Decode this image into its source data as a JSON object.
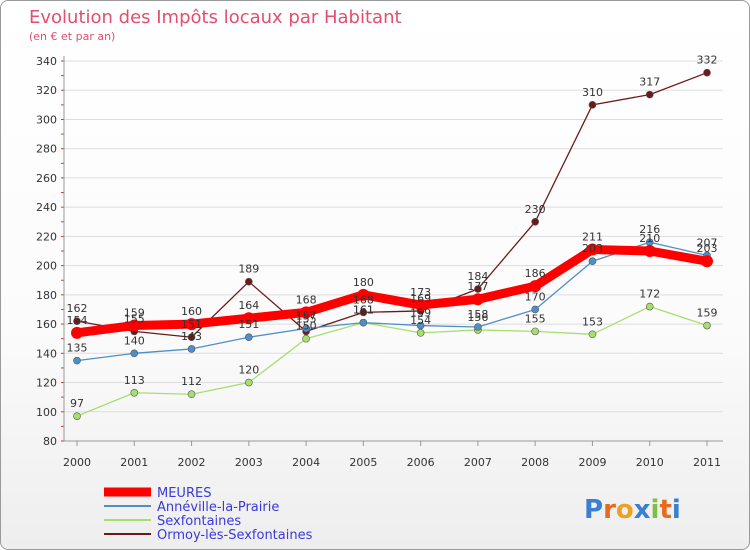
{
  "chart_data": {
    "type": "line",
    "title": "Evolution des Impôts locaux par Habitant",
    "subtitle": "(en € et par an)",
    "xlabel": "",
    "ylabel": "",
    "x": [
      "2000",
      "2001",
      "2002",
      "2003",
      "2004",
      "2005",
      "2006",
      "2007",
      "2008",
      "2009",
      "2010",
      "2011"
    ],
    "ylim": [
      80,
      340
    ],
    "yticks": [
      80,
      100,
      120,
      140,
      160,
      180,
      200,
      220,
      240,
      260,
      280,
      300,
      320,
      340
    ],
    "legend_position": "bottom-left",
    "series": [
      {
        "name": "MEURES",
        "color": "#ff0000",
        "values": [
          154,
          159,
          160,
          164,
          168,
          180,
          173,
          177,
          186,
          211,
          210,
          203
        ],
        "labels": [
          "154",
          "159",
          "160",
          "164",
          "168",
          "180",
          "173",
          "177",
          "186",
          "211",
          "210",
          "203"
        ]
      },
      {
        "name": "Annéville-la-Prairie",
        "color": "#4f8fc8",
        "values": [
          135,
          140,
          143,
          151,
          157,
          161,
          159,
          158,
          170,
          203,
          216,
          207
        ],
        "labels": [
          "135",
          "140",
          "143",
          "151",
          "157",
          "161",
          "159",
          "158",
          "170",
          "203",
          "216",
          "207"
        ]
      },
      {
        "name": "Sexfontaines",
        "color": "#a6df6e",
        "values": [
          97,
          113,
          112,
          120,
          150,
          161,
          154,
          156,
          155,
          153,
          172,
          159
        ],
        "labels": [
          "97",
          "113",
          "112",
          "120",
          "150",
          "161",
          "154",
          "156",
          "155",
          "153",
          "172",
          "159"
        ]
      },
      {
        "name": "Ormoy-lès-Sexfontaines",
        "color": "#6b1a1a",
        "values": [
          162,
          155,
          151,
          189,
          155,
          168,
          169,
          184,
          230,
          310,
          317,
          332
        ],
        "labels": [
          "162",
          "155",
          "151",
          "189",
          "155",
          "168",
          "169",
          "184",
          "230",
          "310",
          "317",
          "332"
        ]
      }
    ]
  },
  "logo": {
    "letters": [
      "P",
      "r",
      "o",
      "x",
      "i",
      "t",
      "i"
    ],
    "colors": [
      "#3a7fd0",
      "#e86a1c",
      "#f0a020",
      "#3a7fd0",
      "#7bc143",
      "#e86a1c",
      "#3a7fd0"
    ]
  }
}
